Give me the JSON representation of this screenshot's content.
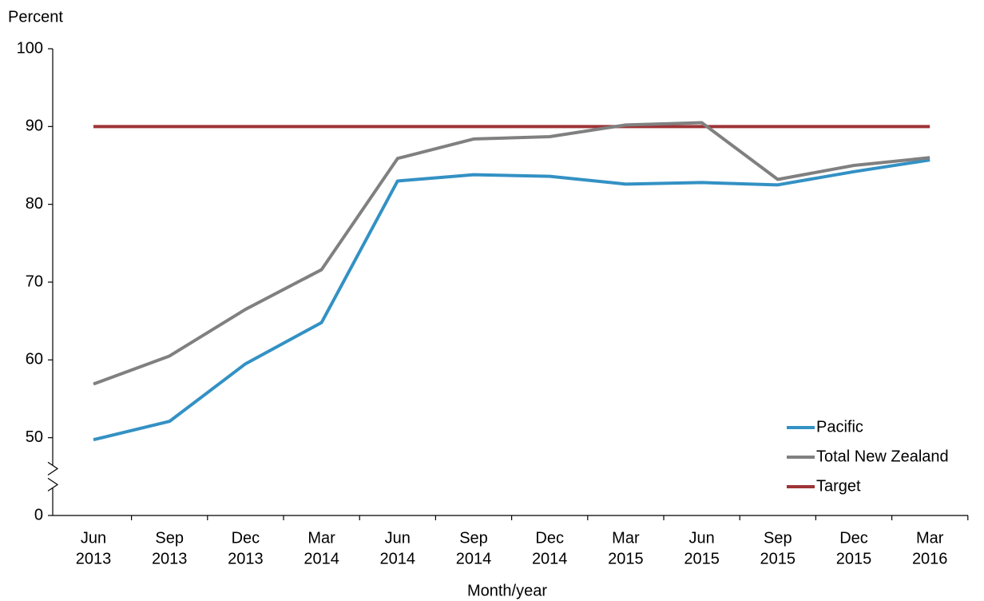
{
  "chart_data": {
    "type": "line",
    "y_label": "Percent",
    "x_label": "Month/year",
    "categories": [
      [
        "Jun",
        "2013"
      ],
      [
        "Sep",
        "2013"
      ],
      [
        "Dec",
        "2013"
      ],
      [
        "Mar",
        "2014"
      ],
      [
        "Jun",
        "2014"
      ],
      [
        "Sep",
        "2014"
      ],
      [
        "Dec",
        "2014"
      ],
      [
        "Mar",
        "2015"
      ],
      [
        "Jun",
        "2015"
      ],
      [
        "Sep",
        "2015"
      ],
      [
        "Dec",
        "2015"
      ],
      [
        "Mar",
        "2016"
      ]
    ],
    "series": [
      {
        "name": "Pacific",
        "color": "#3391c4",
        "values": [
          48.7,
          52.1,
          59.5,
          64.8,
          83.0,
          83.8,
          83.6,
          82.6,
          82.8,
          82.5,
          84.2,
          85.7
        ]
      },
      {
        "name": "Total New Zealand",
        "color": "#808080",
        "values": [
          56.9,
          60.5,
          66.5,
          71.6,
          85.9,
          88.4,
          88.7,
          90.2,
          90.5,
          83.2,
          85.0,
          86.0
        ]
      },
      {
        "name": "Target",
        "color": "#9e3336",
        "values": [
          90,
          90,
          90,
          90,
          90,
          90,
          90,
          90,
          90,
          90,
          90,
          90
        ]
      }
    ],
    "ylim": [
      0,
      100
    ],
    "yticks": [
      0,
      50,
      60,
      70,
      80,
      90,
      100
    ],
    "axis_break": true,
    "grid": false,
    "legend": "lower right"
  }
}
